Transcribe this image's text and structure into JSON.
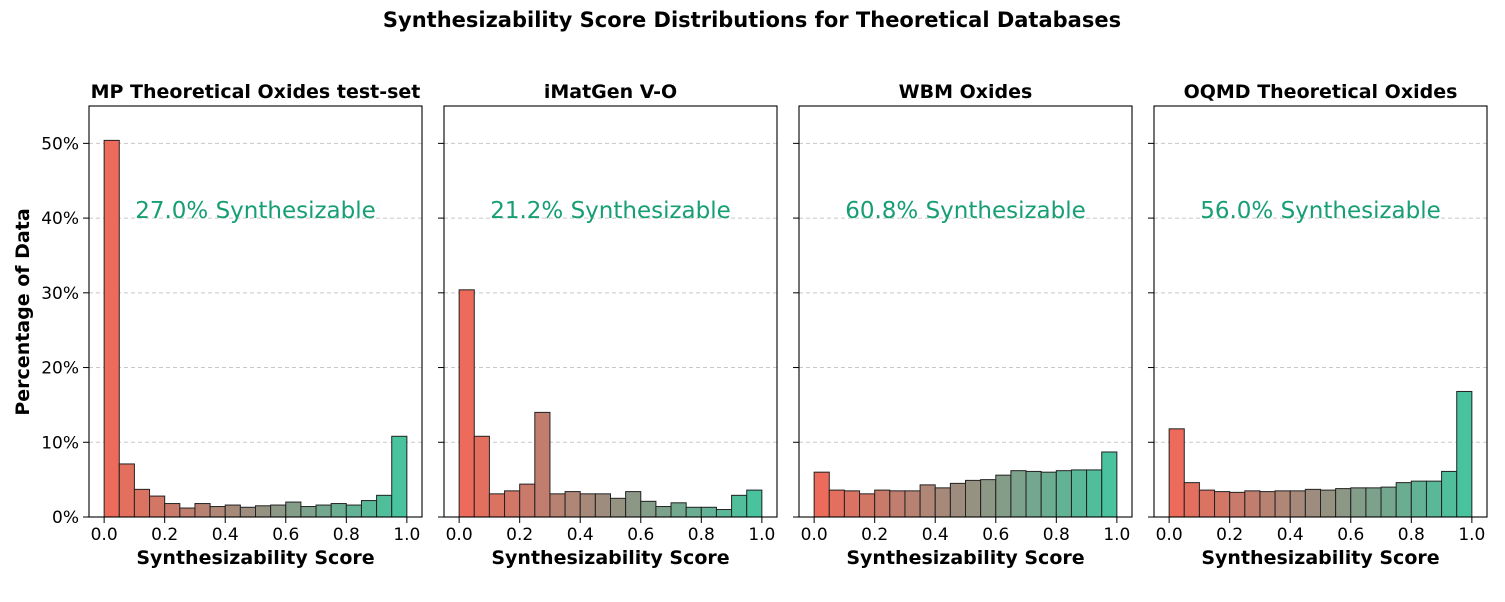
{
  "chart_data": {
    "title": "Synthesizability Score Distributions for Theoretical Databases",
    "ylabel": "Percentage of Data",
    "yticks": [
      "0%",
      "10%",
      "20%",
      "30%",
      "40%",
      "50%"
    ],
    "xticks": [
      "0.0",
      "0.2",
      "0.4",
      "0.6",
      "0.8",
      "1.0"
    ],
    "annotation_color": "#169e74",
    "colors": {
      "low": "#ec6b5a",
      "mid": "#9a8f80",
      "high": "#48c39e"
    },
    "panels": [
      {
        "type": "bar",
        "title": "MP Theoretical Oxides test-set",
        "xlabel": "Synthesizability Score",
        "annotation": "27.0% Synthesizable",
        "bin_edges": [
          0.0,
          0.05,
          0.1,
          0.15,
          0.2,
          0.25,
          0.3,
          0.35,
          0.4,
          0.45,
          0.5,
          0.55,
          0.6,
          0.65,
          0.7,
          0.75,
          0.8,
          0.85,
          0.9,
          0.95,
          1.0
        ],
        "values": [
          50.4,
          7.1,
          3.7,
          2.8,
          1.8,
          1.2,
          1.8,
          1.4,
          1.6,
          1.3,
          1.5,
          1.6,
          2.0,
          1.4,
          1.6,
          1.8,
          1.6,
          2.2,
          2.9,
          10.8
        ],
        "xlim": [
          -0.05,
          1.05
        ],
        "ylim": [
          0,
          55
        ]
      },
      {
        "type": "bar",
        "title": "iMatGen V-O",
        "xlabel": "Synthesizability Score",
        "annotation": "21.2% Synthesizable",
        "bin_edges": [
          0.0,
          0.05,
          0.1,
          0.15,
          0.2,
          0.25,
          0.3,
          0.35,
          0.4,
          0.45,
          0.5,
          0.55,
          0.6,
          0.65,
          0.7,
          0.75,
          0.8,
          0.85,
          0.9,
          0.95,
          1.0
        ],
        "values": [
          30.4,
          10.8,
          3.1,
          3.5,
          4.4,
          14.0,
          3.1,
          3.4,
          3.1,
          3.1,
          2.5,
          3.4,
          2.1,
          1.4,
          1.9,
          1.3,
          1.3,
          1.0,
          2.9,
          3.6
        ],
        "xlim": [
          -0.05,
          1.05
        ],
        "ylim": [
          0,
          55
        ]
      },
      {
        "type": "bar",
        "title": "WBM Oxides",
        "xlabel": "Synthesizability Score",
        "annotation": "60.8% Synthesizable",
        "bin_edges": [
          0.0,
          0.05,
          0.1,
          0.15,
          0.2,
          0.25,
          0.3,
          0.35,
          0.4,
          0.45,
          0.5,
          0.55,
          0.6,
          0.65,
          0.7,
          0.75,
          0.8,
          0.85,
          0.9,
          0.95,
          1.0
        ],
        "values": [
          6.0,
          3.6,
          3.5,
          3.1,
          3.6,
          3.5,
          3.5,
          4.3,
          3.9,
          4.5,
          4.9,
          5.0,
          5.6,
          6.2,
          6.1,
          6.0,
          6.2,
          6.3,
          6.3,
          8.7
        ],
        "xlim": [
          -0.05,
          1.05
        ],
        "ylim": [
          0,
          55
        ]
      },
      {
        "type": "bar",
        "title": "OQMD Theoretical Oxides",
        "xlabel": "Synthesizability Score",
        "annotation": "56.0% Synthesizable",
        "bin_edges": [
          0.0,
          0.05,
          0.1,
          0.15,
          0.2,
          0.25,
          0.3,
          0.35,
          0.4,
          0.45,
          0.5,
          0.55,
          0.6,
          0.65,
          0.7,
          0.75,
          0.8,
          0.85,
          0.9,
          0.95,
          1.0
        ],
        "values": [
          11.8,
          4.6,
          3.6,
          3.4,
          3.3,
          3.5,
          3.4,
          3.5,
          3.5,
          3.7,
          3.6,
          3.8,
          3.9,
          3.9,
          4.0,
          4.6,
          4.8,
          4.8,
          6.1,
          16.8
        ],
        "xlim": [
          -0.05,
          1.05
        ],
        "ylim": [
          0,
          55
        ]
      }
    ]
  }
}
